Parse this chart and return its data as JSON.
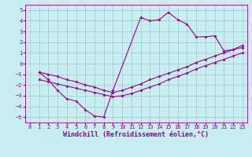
{
  "bg_color": "#c8eef0",
  "line_color": "#9900aa",
  "grid_color": "#99cccc",
  "xlim": [
    -0.5,
    23.5
  ],
  "ylim": [
    -5.5,
    5.5
  ],
  "xticks": [
    0,
    1,
    2,
    3,
    4,
    5,
    6,
    7,
    8,
    9,
    10,
    11,
    12,
    13,
    14,
    15,
    16,
    17,
    18,
    19,
    20,
    21,
    22,
    23
  ],
  "yticks": [
    -5,
    -4,
    -3,
    -2,
    -1,
    0,
    1,
    2,
    3,
    4,
    5
  ],
  "curve1_x": [
    1,
    2,
    3,
    4,
    5,
    6,
    7,
    8,
    9,
    12,
    13,
    14,
    15,
    16,
    17,
    18,
    19,
    20,
    21,
    22,
    23
  ],
  "curve1_y": [
    -0.8,
    -1.5,
    -2.5,
    -3.3,
    -3.5,
    -4.3,
    -4.9,
    -5.0,
    -2.5,
    4.3,
    4.0,
    4.1,
    4.8,
    4.1,
    3.7,
    2.5,
    2.5,
    2.6,
    1.2,
    1.3,
    1.7
  ],
  "curve2_x": [
    1,
    2,
    3,
    4,
    5,
    6,
    7,
    8,
    9,
    10,
    11,
    12,
    13,
    14,
    15,
    16,
    17,
    18,
    19,
    20,
    21,
    22,
    23
  ],
  "curve2_y": [
    -1.5,
    -1.7,
    -1.9,
    -2.1,
    -2.3,
    -2.5,
    -2.7,
    -2.9,
    -3.1,
    -3.0,
    -2.8,
    -2.5,
    -2.2,
    -1.9,
    -1.5,
    -1.2,
    -0.9,
    -0.5,
    -0.2,
    0.1,
    0.4,
    0.7,
    1.0
  ],
  "curve3_x": [
    1,
    2,
    3,
    4,
    5,
    6,
    7,
    8,
    9,
    10,
    11,
    12,
    13,
    14,
    15,
    16,
    17,
    18,
    19,
    20,
    21,
    22,
    23
  ],
  "curve3_y": [
    -0.8,
    -1.0,
    -1.2,
    -1.5,
    -1.7,
    -2.0,
    -2.2,
    -2.5,
    -2.7,
    -2.5,
    -2.2,
    -1.9,
    -1.5,
    -1.2,
    -0.9,
    -0.6,
    -0.3,
    0.1,
    0.4,
    0.7,
    1.0,
    1.3,
    1.5
  ],
  "xlabel": "Windchill (Refroidissement éolien,°C)",
  "marker": "D",
  "markersize": 2.0,
  "linewidth": 0.8,
  "tick_fontsize": 5.0,
  "xlabel_fontsize": 6.0
}
